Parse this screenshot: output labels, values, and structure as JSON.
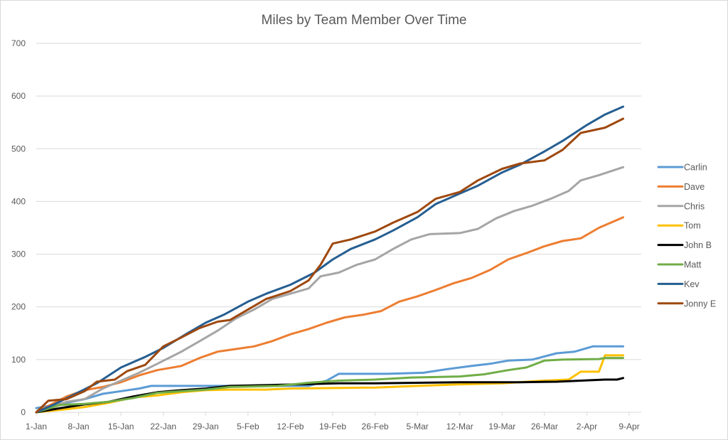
{
  "chart_data": {
    "type": "line",
    "title": "Miles by Team Member Over Time",
    "xlabel": "",
    "ylabel": "",
    "ylim": [
      0,
      700
    ],
    "yticks": [
      0,
      100,
      200,
      300,
      400,
      500,
      600,
      700
    ],
    "x_start": "1-Jan",
    "x_unit": "days since 1-Jan",
    "xlim": [
      0,
      98
    ],
    "xticks": [
      {
        "day": 0,
        "label": "1-Jan"
      },
      {
        "day": 7,
        "label": "8-Jan"
      },
      {
        "day": 14,
        "label": "15-Jan"
      },
      {
        "day": 21,
        "label": "22-Jan"
      },
      {
        "day": 28,
        "label": "29-Jan"
      },
      {
        "day": 35,
        "label": "5-Feb"
      },
      {
        "day": 42,
        "label": "12-Feb"
      },
      {
        "day": 49,
        "label": "19-Feb"
      },
      {
        "day": 56,
        "label": "26-Feb"
      },
      {
        "day": 63,
        "label": "5-Mar"
      },
      {
        "day": 70,
        "label": "12-Mar"
      },
      {
        "day": 77,
        "label": "19-Mar"
      },
      {
        "day": 84,
        "label": "26-Mar"
      },
      {
        "day": 91,
        "label": "2-Apr"
      },
      {
        "day": 98,
        "label": "9-Apr"
      }
    ],
    "grid": true,
    "legend_position": "right",
    "series": [
      {
        "name": "Carlin",
        "color": "#5B9BD5",
        "points": [
          [
            0,
            8
          ],
          [
            5,
            18
          ],
          [
            8,
            25
          ],
          [
            11,
            35
          ],
          [
            14,
            40
          ],
          [
            17,
            45
          ],
          [
            19,
            50
          ],
          [
            25,
            50
          ],
          [
            45,
            50
          ],
          [
            48,
            60
          ],
          [
            50,
            73
          ],
          [
            58,
            73
          ],
          [
            64,
            75
          ],
          [
            68,
            82
          ],
          [
            72,
            88
          ],
          [
            75,
            92
          ],
          [
            78,
            98
          ],
          [
            82,
            100
          ],
          [
            86,
            112
          ],
          [
            89,
            115
          ],
          [
            92,
            125
          ],
          [
            97,
            125
          ]
        ]
      },
      {
        "name": "Dave",
        "color": "#ED7D31",
        "points": [
          [
            0,
            0
          ],
          [
            5,
            30
          ],
          [
            8,
            42
          ],
          [
            11,
            48
          ],
          [
            14,
            57
          ],
          [
            17,
            70
          ],
          [
            20,
            80
          ],
          [
            24,
            88
          ],
          [
            27,
            103
          ],
          [
            30,
            115
          ],
          [
            33,
            120
          ],
          [
            36,
            125
          ],
          [
            39,
            135
          ],
          [
            42,
            148
          ],
          [
            45,
            158
          ],
          [
            48,
            170
          ],
          [
            51,
            180
          ],
          [
            54,
            185
          ],
          [
            57,
            192
          ],
          [
            60,
            210
          ],
          [
            63,
            220
          ],
          [
            66,
            232
          ],
          [
            69,
            245
          ],
          [
            72,
            255
          ],
          [
            75,
            270
          ],
          [
            78,
            290
          ],
          [
            81,
            302
          ],
          [
            84,
            315
          ],
          [
            87,
            325
          ],
          [
            90,
            330
          ],
          [
            93,
            350
          ],
          [
            97,
            370
          ]
        ]
      },
      {
        "name": "Chris",
        "color": "#A5A5A5",
        "points": [
          [
            0,
            0
          ],
          [
            5,
            20
          ],
          [
            8,
            25
          ],
          [
            11,
            45
          ],
          [
            14,
            60
          ],
          [
            17,
            75
          ],
          [
            20,
            92
          ],
          [
            24,
            115
          ],
          [
            27,
            135
          ],
          [
            30,
            155
          ],
          [
            33,
            178
          ],
          [
            36,
            195
          ],
          [
            39,
            215
          ],
          [
            42,
            225
          ],
          [
            45,
            235
          ],
          [
            47,
            258
          ],
          [
            50,
            265
          ],
          [
            53,
            280
          ],
          [
            56,
            290
          ],
          [
            59,
            310
          ],
          [
            62,
            328
          ],
          [
            65,
            338
          ],
          [
            70,
            340
          ],
          [
            73,
            348
          ],
          [
            76,
            368
          ],
          [
            79,
            382
          ],
          [
            82,
            392
          ],
          [
            85,
            405
          ],
          [
            88,
            420
          ],
          [
            90,
            440
          ],
          [
            93,
            450
          ],
          [
            97,
            465
          ]
        ]
      },
      {
        "name": "Tom",
        "color": "#FFC000",
        "points": [
          [
            0,
            0
          ],
          [
            5,
            6
          ],
          [
            8,
            10
          ],
          [
            12,
            18
          ],
          [
            16,
            28
          ],
          [
            20,
            32
          ],
          [
            24,
            38
          ],
          [
            28,
            42
          ],
          [
            32,
            43
          ],
          [
            38,
            43
          ],
          [
            42,
            45
          ],
          [
            56,
            47
          ],
          [
            63,
            50
          ],
          [
            70,
            53
          ],
          [
            77,
            55
          ],
          [
            84,
            60
          ],
          [
            88,
            62
          ],
          [
            90,
            77
          ],
          [
            93,
            77
          ],
          [
            94,
            108
          ],
          [
            97,
            108
          ]
        ]
      },
      {
        "name": "John B",
        "color": "#000000",
        "points": [
          [
            0,
            0
          ],
          [
            4,
            8
          ],
          [
            8,
            15
          ],
          [
            12,
            20
          ],
          [
            16,
            30
          ],
          [
            20,
            38
          ],
          [
            24,
            42
          ],
          [
            28,
            45
          ],
          [
            32,
            50
          ],
          [
            40,
            52
          ],
          [
            50,
            55
          ],
          [
            56,
            55
          ],
          [
            63,
            56
          ],
          [
            70,
            57
          ],
          [
            80,
            57
          ],
          [
            86,
            58
          ],
          [
            90,
            60
          ],
          [
            94,
            62
          ],
          [
            96,
            62
          ],
          [
            97,
            65
          ]
        ]
      },
      {
        "name": "Matt",
        "color": "#70AD47",
        "points": [
          [
            0,
            0
          ],
          [
            4,
            14
          ],
          [
            8,
            16
          ],
          [
            12,
            20
          ],
          [
            16,
            27
          ],
          [
            20,
            37
          ],
          [
            24,
            40
          ],
          [
            28,
            43
          ],
          [
            32,
            48
          ],
          [
            40,
            50
          ],
          [
            45,
            56
          ],
          [
            50,
            60
          ],
          [
            56,
            62
          ],
          [
            62,
            66
          ],
          [
            70,
            68
          ],
          [
            74,
            72
          ],
          [
            78,
            80
          ],
          [
            81,
            85
          ],
          [
            84,
            98
          ],
          [
            87,
            100
          ],
          [
            93,
            101
          ],
          [
            94,
            103
          ],
          [
            97,
            103
          ]
        ]
      },
      {
        "name": "Kev",
        "color": "#255E91",
        "points": [
          [
            0,
            0
          ],
          [
            3,
            15
          ],
          [
            7,
            38
          ],
          [
            10,
            55
          ],
          [
            14,
            85
          ],
          [
            18,
            105
          ],
          [
            21,
            122
          ],
          [
            25,
            150
          ],
          [
            28,
            170
          ],
          [
            31,
            185
          ],
          [
            35,
            210
          ],
          [
            38,
            225
          ],
          [
            42,
            242
          ],
          [
            46,
            265
          ],
          [
            49,
            290
          ],
          [
            52,
            310
          ],
          [
            56,
            328
          ],
          [
            59,
            345
          ],
          [
            63,
            370
          ],
          [
            66,
            395
          ],
          [
            70,
            415
          ],
          [
            73,
            430
          ],
          [
            77,
            455
          ],
          [
            80,
            470
          ],
          [
            84,
            495
          ],
          [
            87,
            515
          ],
          [
            91,
            545
          ],
          [
            94,
            565
          ],
          [
            97,
            580
          ]
        ]
      },
      {
        "name": "Jonny E",
        "color": "#9E480E",
        "points": [
          [
            0,
            0
          ],
          [
            2,
            22
          ],
          [
            5,
            25
          ],
          [
            8,
            40
          ],
          [
            10,
            58
          ],
          [
            13,
            62
          ],
          [
            15,
            78
          ],
          [
            18,
            90
          ],
          [
            21,
            125
          ],
          [
            24,
            142
          ],
          [
            27,
            160
          ],
          [
            30,
            172
          ],
          [
            32,
            175
          ],
          [
            35,
            195
          ],
          [
            38,
            215
          ],
          [
            42,
            230
          ],
          [
            45,
            250
          ],
          [
            47,
            280
          ],
          [
            49,
            320
          ],
          [
            52,
            328
          ],
          [
            56,
            343
          ],
          [
            59,
            360
          ],
          [
            63,
            380
          ],
          [
            66,
            405
          ],
          [
            70,
            418
          ],
          [
            73,
            440
          ],
          [
            77,
            462
          ],
          [
            80,
            472
          ],
          [
            84,
            478
          ],
          [
            87,
            498
          ],
          [
            90,
            530
          ],
          [
            94,
            540
          ],
          [
            97,
            557
          ]
        ]
      }
    ]
  },
  "colors": {
    "gridline": "#D9D9D9",
    "text": "#595959"
  }
}
